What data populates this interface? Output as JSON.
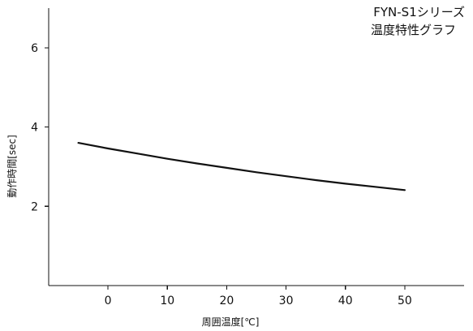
{
  "chart_data": {
    "type": "line",
    "title": [
      "FYN-S1シリーズ",
      "温度特性グラフ"
    ],
    "xlabel": "周囲温度[℃]",
    "ylabel": "動作時間[sec]",
    "xlim": [
      -10,
      60
    ],
    "ylim": [
      0,
      7
    ],
    "xticks": [
      0,
      10,
      20,
      30,
      40,
      50
    ],
    "yticks": [
      2,
      4,
      6
    ],
    "grid": false,
    "series": [
      {
        "color": "#111111",
        "x": [
          -5,
          0,
          5,
          10,
          15,
          20,
          25,
          30,
          35,
          40,
          45,
          50
        ],
        "y": [
          3.6,
          3.46,
          3.33,
          3.2,
          3.08,
          2.97,
          2.86,
          2.76,
          2.66,
          2.57,
          2.49,
          2.41
        ]
      }
    ]
  }
}
